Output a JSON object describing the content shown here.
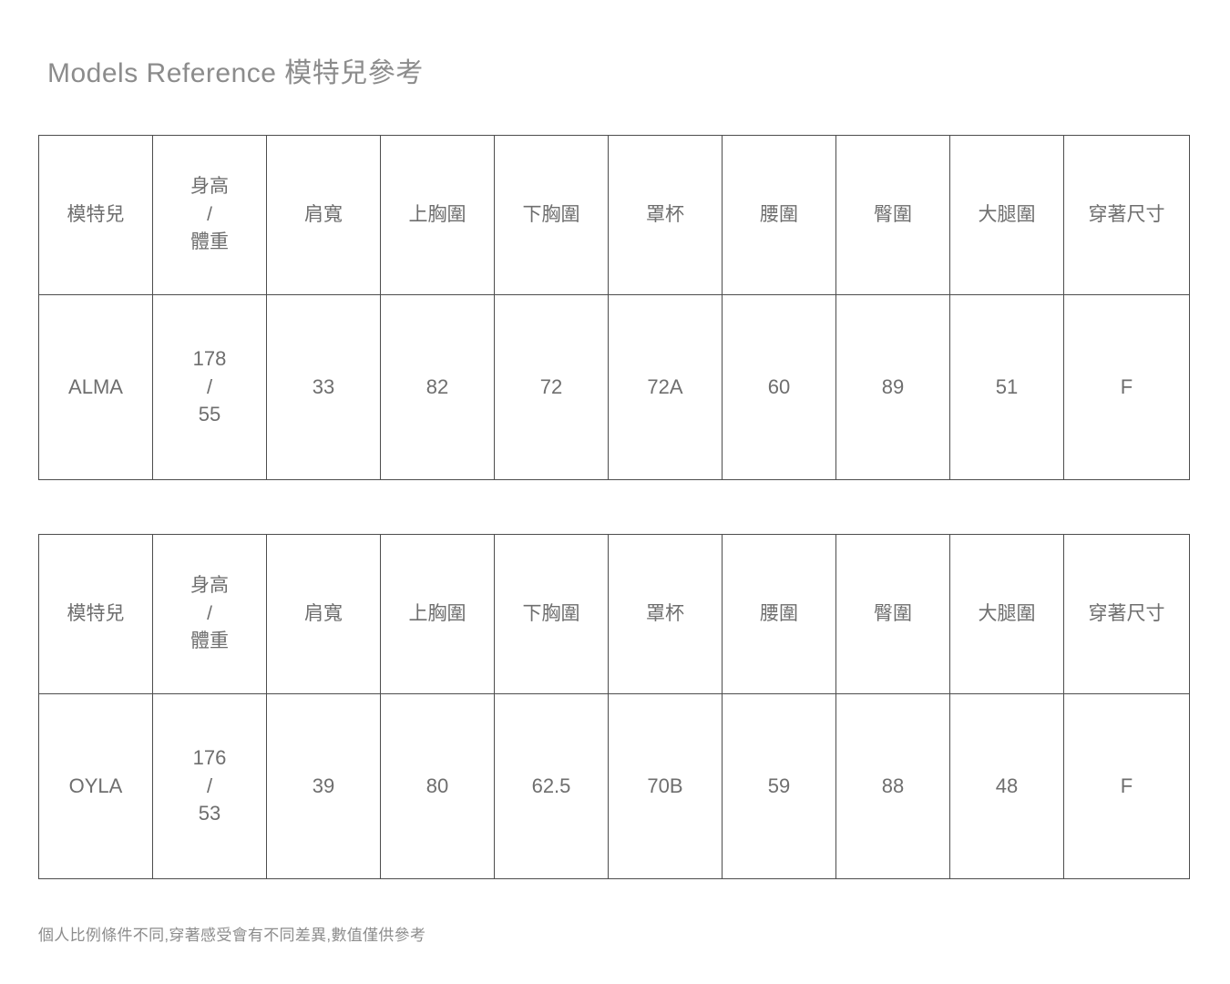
{
  "page": {
    "title": "Models Reference 模特兒參考",
    "footnote": "個人比例條件不同,穿著感受會有不同差異,數值僅供參考"
  },
  "colors": {
    "border": "#4d4d4d",
    "table_text": "#6e6e6e",
    "muted_text": "#8c8c8c",
    "background": "#ffffff"
  },
  "tables": [
    {
      "model": "ALMA",
      "headers": [
        "模特兒",
        "身高\n/\n體重",
        "肩寬",
        "上胸圍",
        "下胸圍",
        "罩杯",
        "腰圍",
        "臀圍",
        "大腿圍",
        "穿著尺寸"
      ],
      "rows": [
        [
          "ALMA",
          "178\n/\n55",
          "33",
          "82",
          "72",
          "72A",
          "60",
          "89",
          "51",
          "F"
        ]
      ]
    },
    {
      "model": "OYLA",
      "headers": [
        "模特兒",
        "身高\n/\n體重",
        "肩寬",
        "上胸圍",
        "下胸圍",
        "罩杯",
        "腰圍",
        "臀圍",
        "大腿圍",
        "穿著尺寸"
      ],
      "rows": [
        [
          "OYLA",
          "176\n/\n53",
          "39",
          "80",
          "62.5",
          "70B",
          "59",
          "88",
          "48",
          "F"
        ]
      ]
    }
  ]
}
